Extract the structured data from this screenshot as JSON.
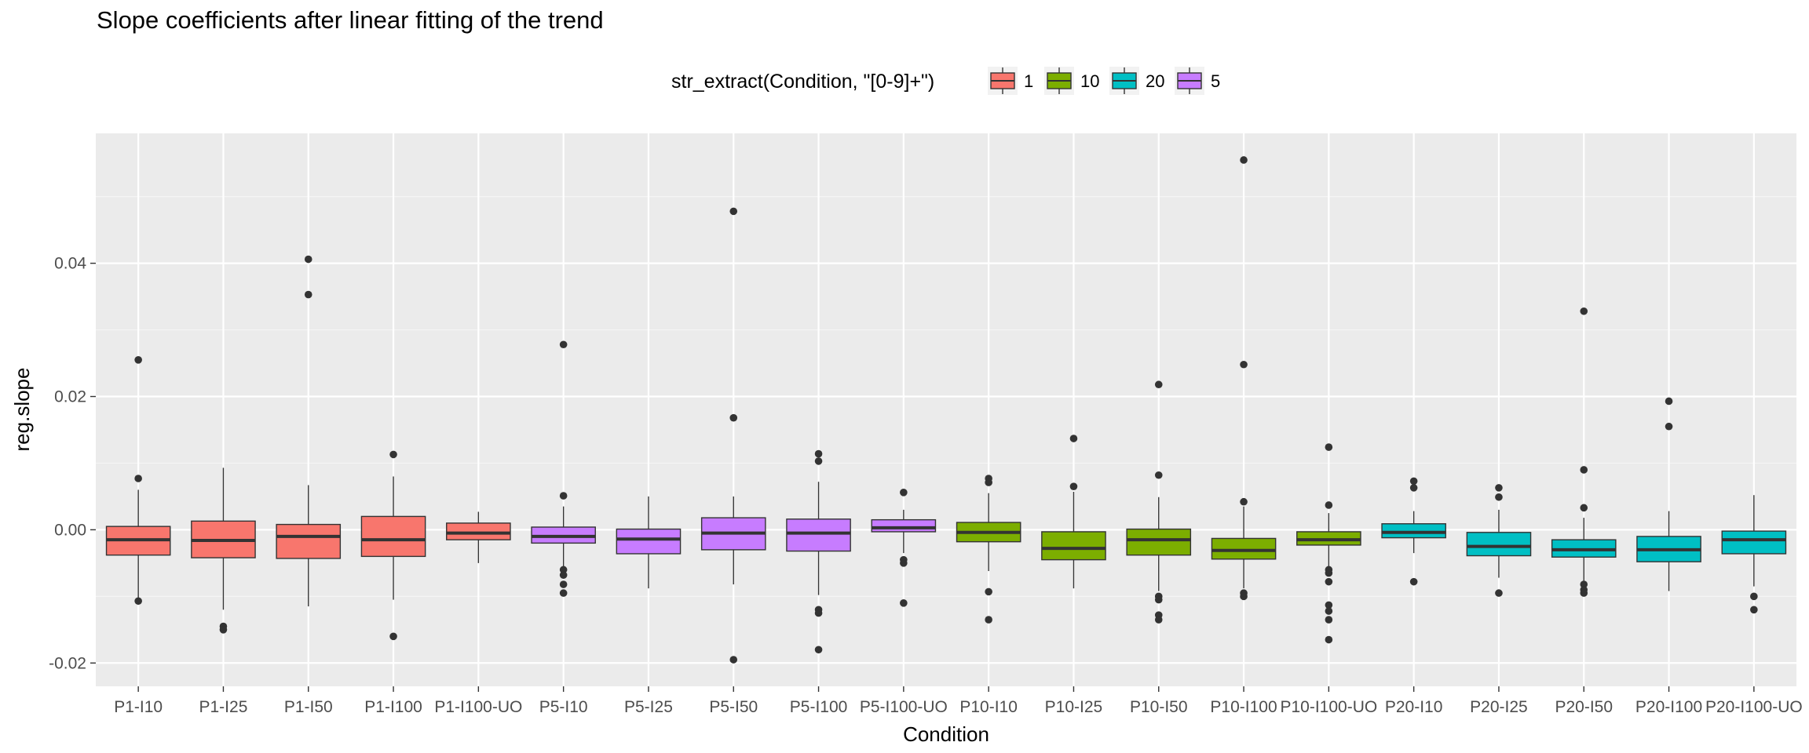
{
  "title": "Slope coefficients after linear fitting of the trend",
  "legend": {
    "title": "str_extract(Condition, \"[0-9]+\")",
    "position": "top",
    "items": [
      {
        "label": "1",
        "color": "#F8766D"
      },
      {
        "label": "10",
        "color": "#7CAE00"
      },
      {
        "label": "20",
        "color": "#00BFC4"
      },
      {
        "label": "5",
        "color": "#C77CFF"
      }
    ]
  },
  "chart_data": {
    "type": "boxplot",
    "title": "Slope coefficients after linear fitting of the trend",
    "xlabel": "Condition",
    "ylabel": "reg.slope",
    "ylim": [
      -0.0235,
      0.0595
    ],
    "yticks": [
      -0.02,
      0.0,
      0.02,
      0.04
    ],
    "ytick_labels": [
      "-0.02",
      "0.00",
      "0.02",
      "0.04"
    ],
    "grid": true,
    "legend_position": "top",
    "categories": [
      "P1-I10",
      "P1-I25",
      "P1-I50",
      "P1-I100",
      "P1-I100-UO",
      "P5-I10",
      "P5-I25",
      "P5-I50",
      "P5-I100",
      "P5-I100-UO",
      "P10-I10",
      "P10-I25",
      "P10-I50",
      "P10-I100",
      "P10-I100-UO",
      "P20-I10",
      "P20-I25",
      "P20-I50",
      "P20-I100",
      "P20-I100-UO"
    ],
    "boxes": [
      {
        "group": "1",
        "whisker_low": -0.0105,
        "q1": -0.0038,
        "median": -0.0015,
        "q3": 0.0005,
        "whisker_high": 0.006,
        "outliers": [
          0.0255,
          0.0077,
          -0.0107
        ]
      },
      {
        "group": "1",
        "whisker_low": -0.012,
        "q1": -0.0042,
        "median": -0.0016,
        "q3": 0.0013,
        "whisker_high": 0.0093,
        "outliers": [
          -0.0145,
          -0.015
        ]
      },
      {
        "group": "1",
        "whisker_low": -0.0115,
        "q1": -0.0043,
        "median": -0.001,
        "q3": 0.0008,
        "whisker_high": 0.0067,
        "outliers": [
          0.0406,
          0.0353
        ]
      },
      {
        "group": "1",
        "whisker_low": -0.0105,
        "q1": -0.004,
        "median": -0.0015,
        "q3": 0.002,
        "whisker_high": 0.008,
        "outliers": [
          0.0113,
          -0.016
        ]
      },
      {
        "group": "1",
        "whisker_low": -0.005,
        "q1": -0.0015,
        "median": -0.0005,
        "q3": 0.001,
        "whisker_high": 0.0027,
        "outliers": []
      },
      {
        "group": "5",
        "whisker_low": -0.0055,
        "q1": -0.002,
        "median": -0.001,
        "q3": 0.0004,
        "whisker_high": 0.0035,
        "outliers": [
          0.0278,
          0.0051,
          -0.006,
          -0.0068,
          -0.0082,
          -0.0095
        ]
      },
      {
        "group": "5",
        "whisker_low": -0.0088,
        "q1": -0.0036,
        "median": -0.0014,
        "q3": 0.0001,
        "whisker_high": 0.005,
        "outliers": []
      },
      {
        "group": "5",
        "whisker_low": -0.0082,
        "q1": -0.003,
        "median": -0.0005,
        "q3": 0.0018,
        "whisker_high": 0.005,
        "outliers": [
          0.0478,
          0.0168,
          -0.0195
        ]
      },
      {
        "group": "5",
        "whisker_low": -0.0098,
        "q1": -0.0032,
        "median": -0.0005,
        "q3": 0.0016,
        "whisker_high": 0.0072,
        "outliers": [
          0.0114,
          0.0103,
          -0.012,
          -0.0125,
          -0.018
        ]
      },
      {
        "group": "5",
        "whisker_low": -0.0035,
        "q1": -0.0003,
        "median": 0.0003,
        "q3": 0.0015,
        "whisker_high": 0.003,
        "outliers": [
          0.0056,
          -0.0045,
          -0.005,
          -0.011
        ]
      },
      {
        "group": "10",
        "whisker_low": -0.0062,
        "q1": -0.0018,
        "median": -0.0004,
        "q3": 0.0011,
        "whisker_high": 0.0055,
        "outliers": [
          0.0077,
          0.0071,
          -0.0093,
          -0.0135
        ]
      },
      {
        "group": "10",
        "whisker_low": -0.0088,
        "q1": -0.0045,
        "median": -0.0028,
        "q3": -0.0003,
        "whisker_high": 0.0057,
        "outliers": [
          0.0137,
          0.0065
        ]
      },
      {
        "group": "10",
        "whisker_low": -0.0092,
        "q1": -0.0038,
        "median": -0.0015,
        "q3": 0.0001,
        "whisker_high": 0.0049,
        "outliers": [
          0.0218,
          0.0082,
          -0.01,
          -0.0105,
          -0.0128,
          -0.0135
        ]
      },
      {
        "group": "10",
        "whisker_low": -0.0088,
        "q1": -0.0044,
        "median": -0.0031,
        "q3": -0.0013,
        "whisker_high": 0.0035,
        "outliers": [
          0.0555,
          0.0248,
          0.0042,
          -0.0095,
          -0.01
        ]
      },
      {
        "group": "10",
        "whisker_low": -0.0055,
        "q1": -0.0023,
        "median": -0.0015,
        "q3": -0.0003,
        "whisker_high": 0.0025,
        "outliers": [
          0.0124,
          0.0037,
          -0.006,
          -0.0065,
          -0.0078,
          -0.0113,
          -0.0122,
          -0.0135,
          -0.0165
        ]
      },
      {
        "group": "20",
        "whisker_low": -0.0035,
        "q1": -0.0012,
        "median": -0.0004,
        "q3": 0.0009,
        "whisker_high": 0.0028,
        "outliers": [
          0.0073,
          0.0063,
          -0.0078
        ]
      },
      {
        "group": "20",
        "whisker_low": -0.0072,
        "q1": -0.0039,
        "median": -0.0025,
        "q3": -0.0004,
        "whisker_high": 0.003,
        "outliers": [
          0.0063,
          0.0049,
          -0.0095
        ]
      },
      {
        "group": "20",
        "whisker_low": -0.0078,
        "q1": -0.0041,
        "median": -0.003,
        "q3": -0.0015,
        "whisker_high": 0.0018,
        "outliers": [
          0.0328,
          0.009,
          0.0033,
          -0.0082,
          -0.009,
          -0.0095
        ]
      },
      {
        "group": "20",
        "whisker_low": -0.0092,
        "q1": -0.0048,
        "median": -0.003,
        "q3": -0.001,
        "whisker_high": 0.0028,
        "outliers": [
          0.0193,
          0.0155
        ]
      },
      {
        "group": "20",
        "whisker_low": -0.0085,
        "q1": -0.0036,
        "median": -0.0015,
        "q3": -0.0002,
        "whisker_high": 0.0052,
        "outliers": [
          -0.01,
          -0.012
        ]
      }
    ]
  }
}
